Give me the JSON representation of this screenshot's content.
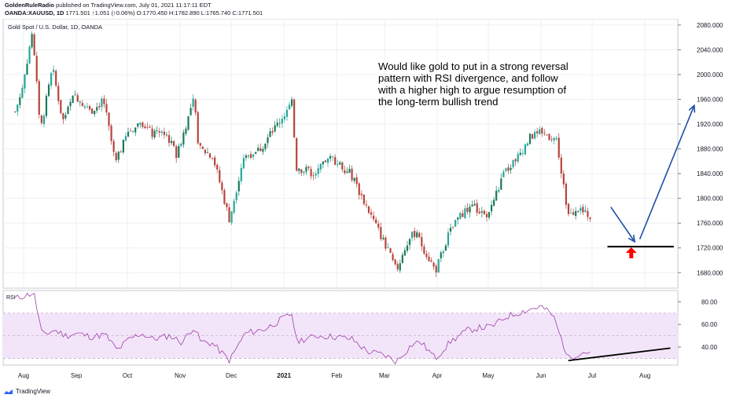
{
  "header": {
    "author": "GoldenRuleRadio",
    "published": "published on TradingView.com, July 01, 2021 11:17:11 EDT",
    "symbol": "OANDA:XAUUSD, 1D",
    "last": "1771.501",
    "change": "↑1.051 (↑0.06%)",
    "ohlc": "O:1770.450 H:1782.890 L:1765.740 C:1771.501"
  },
  "chart_data": {
    "type": "candlestick",
    "title": "Gold Spot / U.S. Dollar, 1D, OANDA",
    "x_labels": [
      "Aug",
      "Sep",
      "Oct",
      "Nov",
      "Dec",
      "2021",
      "Feb",
      "Mar",
      "Apr",
      "May",
      "Jun",
      "Jul",
      "Aug"
    ],
    "price_axis": {
      "ticks": [
        1680,
        1720,
        1760,
        1800,
        1840,
        1880,
        1920,
        1960,
        2000,
        2040,
        2080
      ],
      "range": [
        1655,
        2090
      ],
      "side": "right"
    },
    "price_path": [
      {
        "d": "2020-07-27",
        "c": 1940
      },
      {
        "d": "2020-07-31",
        "c": 1975
      },
      {
        "d": "2020-08-06",
        "c": 2068
      },
      {
        "d": "2020-08-11",
        "c": 1912
      },
      {
        "d": "2020-08-18",
        "c": 2010
      },
      {
        "d": "2020-08-24",
        "c": 1925
      },
      {
        "d": "2020-08-31",
        "c": 1968
      },
      {
        "d": "2020-09-09",
        "c": 1940
      },
      {
        "d": "2020-09-17",
        "c": 1958
      },
      {
        "d": "2020-09-24",
        "c": 1856
      },
      {
        "d": "2020-10-01",
        "c": 1905
      },
      {
        "d": "2020-10-09",
        "c": 1925
      },
      {
        "d": "2020-10-16",
        "c": 1902
      },
      {
        "d": "2020-10-23",
        "c": 1908
      },
      {
        "d": "2020-10-30",
        "c": 1870
      },
      {
        "d": "2020-11-09",
        "c": 1960
      },
      {
        "d": "2020-11-12",
        "c": 1880
      },
      {
        "d": "2020-11-20",
        "c": 1870
      },
      {
        "d": "2020-11-30",
        "c": 1765
      },
      {
        "d": "2020-12-08",
        "c": 1866
      },
      {
        "d": "2020-12-18",
        "c": 1880
      },
      {
        "d": "2021-01-06",
        "c": 1955
      },
      {
        "d": "2021-01-08",
        "c": 1850
      },
      {
        "d": "2021-01-19",
        "c": 1840
      },
      {
        "d": "2021-01-29",
        "c": 1866
      },
      {
        "d": "2021-02-09",
        "c": 1840
      },
      {
        "d": "2021-02-19",
        "c": 1784
      },
      {
        "d": "2021-03-01",
        "c": 1728
      },
      {
        "d": "2021-03-08",
        "c": 1683
      },
      {
        "d": "2021-03-15",
        "c": 1732
      },
      {
        "d": "2021-03-19",
        "c": 1745
      },
      {
        "d": "2021-03-31",
        "c": 1683
      },
      {
        "d": "2021-04-08",
        "c": 1744
      },
      {
        "d": "2021-04-16",
        "c": 1777
      },
      {
        "d": "2021-04-23",
        "c": 1785
      },
      {
        "d": "2021-04-30",
        "c": 1768
      },
      {
        "d": "2021-05-10",
        "c": 1838
      },
      {
        "d": "2021-05-19",
        "c": 1870
      },
      {
        "d": "2021-05-26",
        "c": 1900
      },
      {
        "d": "2021-06-01",
        "c": 1906
      },
      {
        "d": "2021-06-10",
        "c": 1896
      },
      {
        "d": "2021-06-17",
        "c": 1774
      },
      {
        "d": "2021-06-24",
        "c": 1778
      },
      {
        "d": "2021-07-01",
        "c": 1771
      }
    ],
    "rsi_pane": {
      "label": "RSI",
      "ticks": [
        40,
        60,
        80
      ],
      "range": [
        24,
        90
      ],
      "band": [
        30,
        70
      ],
      "midline": 50
    },
    "rsi_path": [
      {
        "d": "2020-07-27",
        "v": 83
      },
      {
        "d": "2020-08-03",
        "v": 86
      },
      {
        "d": "2020-08-07",
        "v": 88
      },
      {
        "d": "2020-08-12",
        "v": 50
      },
      {
        "d": "2020-08-19",
        "v": 55
      },
      {
        "d": "2020-08-26",
        "v": 50
      },
      {
        "d": "2020-09-02",
        "v": 52
      },
      {
        "d": "2020-09-10",
        "v": 49
      },
      {
        "d": "2020-09-18",
        "v": 51
      },
      {
        "d": "2020-09-25",
        "v": 37
      },
      {
        "d": "2020-10-02",
        "v": 47
      },
      {
        "d": "2020-10-09",
        "v": 52
      },
      {
        "d": "2020-10-16",
        "v": 47
      },
      {
        "d": "2020-10-26",
        "v": 50
      },
      {
        "d": "2020-11-02",
        "v": 44
      },
      {
        "d": "2020-11-09",
        "v": 58
      },
      {
        "d": "2020-11-13",
        "v": 45
      },
      {
        "d": "2020-11-20",
        "v": 43
      },
      {
        "d": "2020-11-30",
        "v": 28
      },
      {
        "d": "2020-12-09",
        "v": 52
      },
      {
        "d": "2020-12-21",
        "v": 56
      },
      {
        "d": "2021-01-06",
        "v": 70
      },
      {
        "d": "2021-01-08",
        "v": 45
      },
      {
        "d": "2021-01-21",
        "v": 50
      },
      {
        "d": "2021-02-01",
        "v": 49
      },
      {
        "d": "2021-02-10",
        "v": 47
      },
      {
        "d": "2021-02-19",
        "v": 36
      },
      {
        "d": "2021-03-01",
        "v": 33
      },
      {
        "d": "2021-03-08",
        "v": 27
      },
      {
        "d": "2021-03-17",
        "v": 42
      },
      {
        "d": "2021-03-22",
        "v": 45
      },
      {
        "d": "2021-03-31",
        "v": 30
      },
      {
        "d": "2021-04-09",
        "v": 45
      },
      {
        "d": "2021-04-19",
        "v": 55
      },
      {
        "d": "2021-04-26",
        "v": 57
      },
      {
        "d": "2021-05-03",
        "v": 58
      },
      {
        "d": "2021-05-12",
        "v": 67
      },
      {
        "d": "2021-05-20",
        "v": 71
      },
      {
        "d": "2021-05-27",
        "v": 74
      },
      {
        "d": "2021-06-01",
        "v": 76
      },
      {
        "d": "2021-06-08",
        "v": 68
      },
      {
        "d": "2021-06-17",
        "v": 30
      },
      {
        "d": "2021-06-24",
        "v": 35
      },
      {
        "d": "2021-07-01",
        "v": 36
      }
    ],
    "annotation": {
      "lines": [
        "Would like gold to put in a strong reversal",
        "pattern with RSI divergence, and follow",
        "with a higher high to argue resumption of",
        "the long-term bullish trend"
      ]
    },
    "drawings": {
      "support_line": {
        "from": {
          "d": "2021-07-10",
          "p": 1722
        },
        "to": {
          "d": "2021-08-18",
          "p": 1722
        }
      },
      "arrow_down": {
        "from": {
          "d": "2021-07-12",
          "p": 1786
        },
        "to": {
          "d": "2021-07-26",
          "p": 1730
        }
      },
      "arrow_up": {
        "from": {
          "d": "2021-07-29",
          "p": 1734
        },
        "to": {
          "d": "2021-08-30",
          "p": 1950
        }
      },
      "red_marker": {
        "d": "2021-07-24",
        "p": 1712
      },
      "rsi_divergence_line": {
        "from": {
          "d": "2021-06-17",
          "v": 28
        },
        "to": {
          "d": "2021-08-16",
          "v": 39
        }
      }
    },
    "colors": {
      "up": "#26a69a",
      "up_dark": "#1a7a5a",
      "down": "#b5453c",
      "rsi": "#9c3fa8",
      "rsi_band": "#f3e5f9",
      "arrows": "#1e4fa8",
      "marker": "#ff0000"
    },
    "grid": true,
    "legend": "none"
  },
  "footer": {
    "brand": "TradingView"
  }
}
